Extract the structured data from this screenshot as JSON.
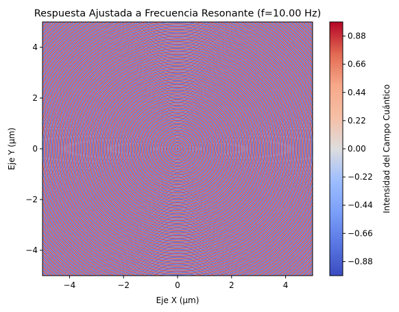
{
  "chart_data": {
    "type": "heatmap",
    "title": "Respuesta Ajustada a Frecuencia Resonante (f=10.00 Hz)",
    "xlabel": "Eje X (µm)",
    "ylabel": "Eje Y (µm)",
    "xlim": [
      -5,
      5
    ],
    "ylim": [
      -5,
      5
    ],
    "xticks": [
      -4,
      -2,
      0,
      2,
      4
    ],
    "yticks": [
      -4,
      -2,
      0,
      2,
      4
    ],
    "xtick_labels": [
      "−4",
      "−2",
      "0",
      "2",
      "4"
    ],
    "ytick_labels": [
      "−4",
      "−2",
      "0",
      "2",
      "4"
    ],
    "field": "sin(2*pi*f*r)",
    "frequency_hz": 10.0,
    "colormap": "coolwarm",
    "colorbar": {
      "label": "Intensidad del Campo Cuántico",
      "range": [
        -0.99,
        0.99
      ],
      "ticks": [
        0.88,
        0.66,
        0.44,
        0.22,
        0.0,
        -0.22,
        -0.44,
        -0.66,
        -0.88
      ],
      "tick_labels": [
        "0.88",
        "0.66",
        "0.44",
        "0.22",
        "0.00",
        "−0.22",
        "−0.44",
        "−0.66",
        "−0.88"
      ]
    },
    "colors": {
      "low": "#3b4cc0",
      "mid": "#dddddd",
      "high": "#b40426"
    }
  }
}
